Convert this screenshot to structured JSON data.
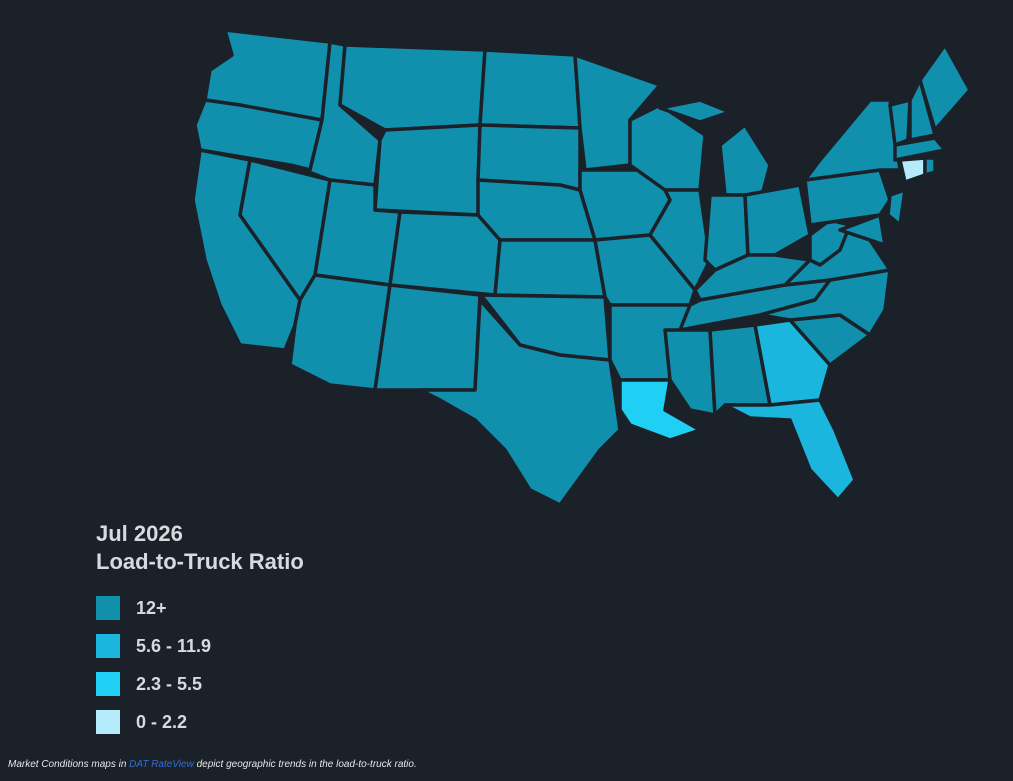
{
  "legend": {
    "title": [
      "Jul 2026",
      "Load-to-Truck Ratio"
    ],
    "items": [
      {
        "label": "12+",
        "color": "#1190ad"
      },
      {
        "label": "5.6 - 11.9",
        "color": "#1ab6dd"
      },
      {
        "label": "2.3 - 5.5",
        "color": "#20cff4"
      },
      {
        "label": "0 - 2.2",
        "color": "#b5ecfb"
      }
    ]
  },
  "caption": {
    "before": "Market Conditions maps in ",
    "link": "DAT RateView",
    "after": " depict geographic trends in the load-to-truck ratio."
  }
}
